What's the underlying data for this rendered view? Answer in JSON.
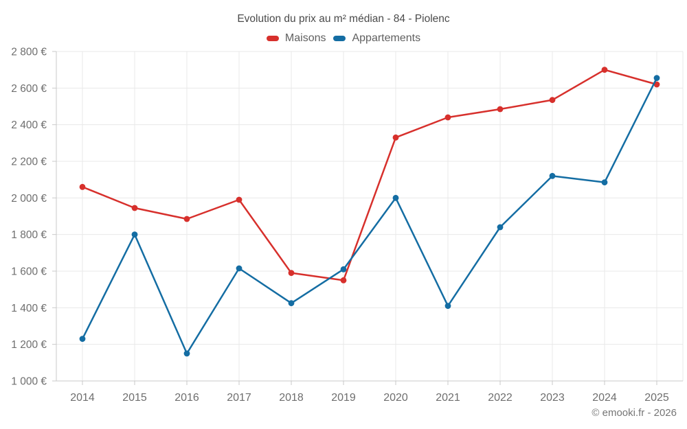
{
  "header": {
    "title": "Evolution du prix au m² médian - 84 - Piolenc"
  },
  "footer": {
    "credit": "© emooki.fr - 2026"
  },
  "chart_data": {
    "type": "line",
    "title": "Evolution du prix au m² médian - 84 - Piolenc",
    "categories": [
      "2014",
      "2015",
      "2016",
      "2017",
      "2018",
      "2019",
      "2020",
      "2021",
      "2022",
      "2023",
      "2024",
      "2025"
    ],
    "series": [
      {
        "name": "Maisons",
        "color": "#d7302c",
        "values": [
          2060,
          1945,
          1885,
          1990,
          1590,
          1550,
          2330,
          2440,
          2485,
          2535,
          2700,
          2620
        ]
      },
      {
        "name": "Appartements",
        "color": "#146da3",
        "values": [
          1230,
          1800,
          1150,
          1615,
          1425,
          1610,
          2000,
          1410,
          1840,
          2120,
          2085,
          2655
        ]
      }
    ],
    "xlabel": "",
    "ylabel": "",
    "ylim": [
      1000,
      2800
    ],
    "ytick_step": 200,
    "y_unit": "€",
    "grid": true,
    "legend_position": "top"
  },
  "style": {
    "background": "#ffffff",
    "grid_color": "#e8e8e8",
    "axis_color": "#c9c9c9",
    "tick_label_color": "#6e6e6e",
    "title_color": "#4a4a4a",
    "legend_text_color": "#5f5f5f",
    "credit_color": "#757575",
    "line_width": 2.5,
    "point_radius": 4.4
  }
}
